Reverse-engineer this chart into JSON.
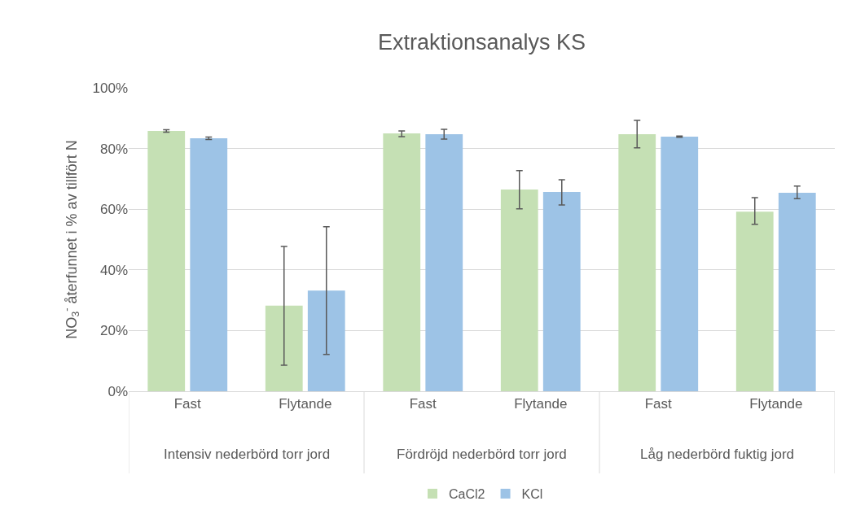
{
  "chart_data": {
    "type": "bar",
    "title": "Extraktionsanalys KS",
    "ylabel": "NO$_{3}$$^{-}$ återfunnet i % av tillfört N",
    "categories": [
      "Fast",
      "Flytande",
      "Fast",
      "Flytande",
      "Fast",
      "Flytande"
    ],
    "annotations": [
      "Intensiv nederbörd torr jord",
      "Fördröjd nederbörd torr jord",
      "Låg nederbörd fuktig jord"
    ],
    "series": [
      {
        "name": "CaCl2",
        "color": "#c5e0b4",
        "values": [
          85.8,
          28.2,
          85.0,
          66.5,
          84.7,
          59.2
        ],
        "errors": [
          [
            85.4,
            86.2
          ],
          [
            8.6,
            47.7
          ],
          [
            83.9,
            85.8
          ],
          [
            60.1,
            72.7
          ],
          [
            80.2,
            89.3
          ],
          [
            55.0,
            63.8
          ]
        ]
      },
      {
        "name": "KCl",
        "color": "#9dc3e6",
        "values": [
          83.4,
          33.2,
          84.7,
          65.7,
          83.9,
          65.4
        ],
        "errors": [
          [
            83.0,
            83.8
          ],
          [
            12.1,
            54.2
          ],
          [
            83.1,
            86.3
          ],
          [
            61.4,
            69.7
          ],
          [
            83.7,
            84.1
          ],
          [
            63.5,
            67.6
          ]
        ]
      }
    ],
    "ylim": [
      0,
      100
    ],
    "yticks": [
      {
        "value": 0,
        "label": "0%"
      },
      {
        "value": 20,
        "label": "20%"
      },
      {
        "value": 40,
        "label": "40%"
      },
      {
        "value": 60,
        "label": "60%"
      },
      {
        "value": 80,
        "label": "80%"
      },
      {
        "value": 100,
        "label": "100%"
      }
    ],
    "grid": "y",
    "legend": "bottom"
  }
}
